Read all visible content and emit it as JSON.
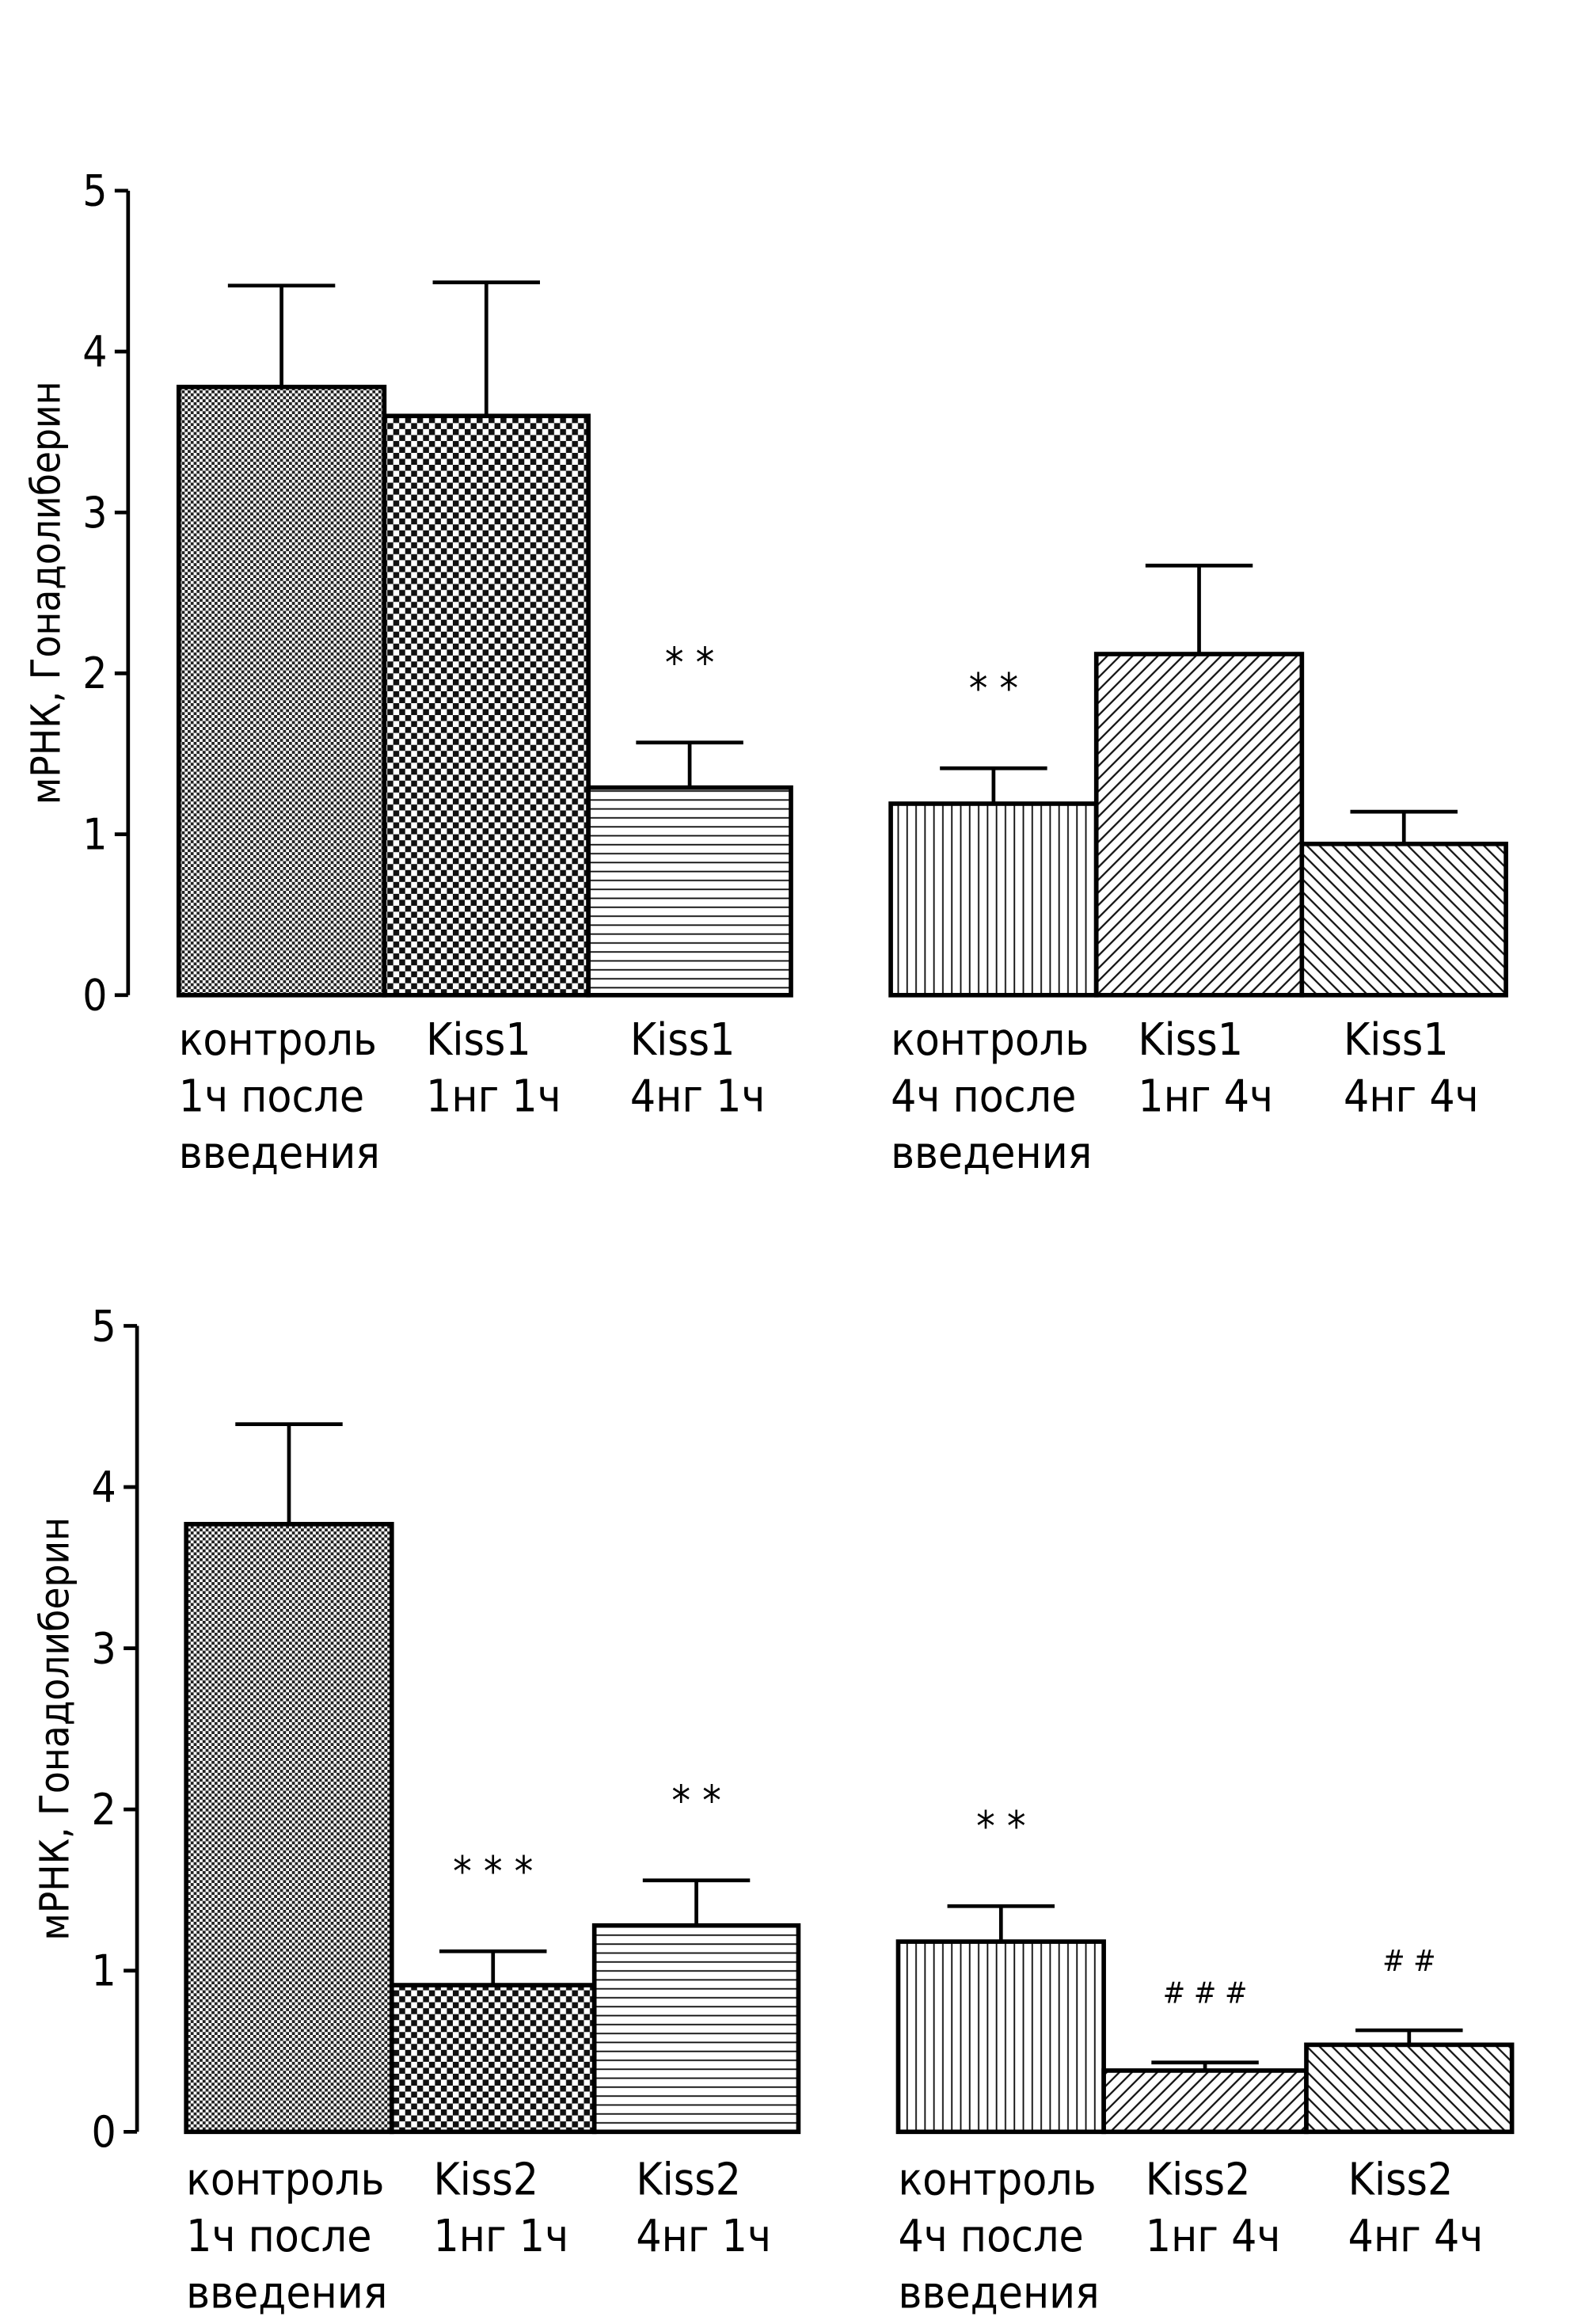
{
  "chart_data": [
    {
      "type": "bar",
      "ylabel": "мРНК, Гонадолиберин",
      "ylim": [
        0,
        5
      ],
      "yticks": [
        "0",
        "1",
        "2",
        "3",
        "4",
        "5"
      ],
      "categories": [
        [
          "контроль",
          "1ч после",
          "введения"
        ],
        [
          "Kiss1",
          "1нг 1ч"
        ],
        [
          "Kiss1",
          "4нг 1ч"
        ],
        [
          "контроль",
          "4ч после",
          "введения"
        ],
        [
          "Kiss1",
          "1нг 4ч"
        ],
        [
          "Kiss1",
          "4нг 4ч"
        ]
      ],
      "values": [
        3.78,
        3.6,
        1.29,
        1.19,
        2.12,
        0.94
      ],
      "error_upper": [
        4.41,
        4.43,
        1.57,
        1.41,
        2.67,
        1.14
      ],
      "annotations": [
        "",
        "",
        "* *",
        "* *",
        "",
        ""
      ],
      "patterns": [
        "fine-checker",
        "coarse-checker",
        "horizontal",
        "vertical",
        "diagonal-up",
        "diagonal-down"
      ]
    },
    {
      "type": "bar",
      "ylabel": "мРНК, Гонадолиберин",
      "ylim": [
        0,
        5
      ],
      "yticks": [
        "0",
        "1",
        "2",
        "3",
        "4",
        "5"
      ],
      "categories": [
        [
          "контроль",
          "1ч после",
          "введения"
        ],
        [
          "Kiss2",
          "1нг 1ч"
        ],
        [
          "Kiss2",
          "4нг 1ч"
        ],
        [
          "контроль",
          "4ч после",
          "введения"
        ],
        [
          "Kiss2",
          "1нг 4ч"
        ],
        [
          "Kiss2",
          "4нг 4ч"
        ]
      ],
      "values": [
        3.77,
        0.91,
        1.28,
        1.18,
        0.38,
        0.54
      ],
      "error_upper": [
        4.39,
        1.12,
        1.56,
        1.4,
        0.43,
        0.63
      ],
      "annotations": [
        "",
        "* * *",
        "* *",
        "* *",
        "# # #",
        "# #"
      ],
      "patterns": [
        "fine-checker",
        "coarse-checker",
        "horizontal",
        "vertical",
        "diagonal-up",
        "diagonal-down"
      ]
    }
  ]
}
